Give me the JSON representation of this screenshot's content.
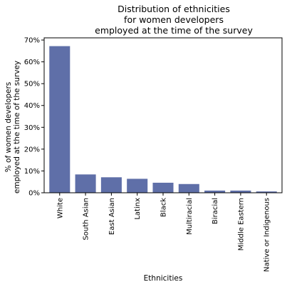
{
  "chart_data": {
    "type": "bar",
    "title": [
      "Distribution of ethnicities",
      "for women developers",
      "employed at the time of the survey"
    ],
    "xlabel": "Ethnicities",
    "ylabel": [
      "% of women developers",
      "employed at the time of the survey"
    ],
    "categories": [
      "White",
      "South Asian",
      "East Asian",
      "Latinx",
      "Black",
      "Multiracial",
      "Biracial",
      "Middle Eastern",
      "Native or Indigenous"
    ],
    "values": [
      67.2,
      8.4,
      7.1,
      6.4,
      4.6,
      4.0,
      1.0,
      1.0,
      0.6
    ],
    "ylim": [
      0,
      71
    ],
    "yticks": [
      0,
      10,
      20,
      30,
      40,
      50,
      60,
      70
    ],
    "ytick_labels": [
      "0%",
      "10%",
      "20%",
      "30%",
      "40%",
      "50%",
      "60%",
      "70%"
    ],
    "bar_color": "#5f6fa8",
    "grid": false,
    "legend": "none"
  }
}
